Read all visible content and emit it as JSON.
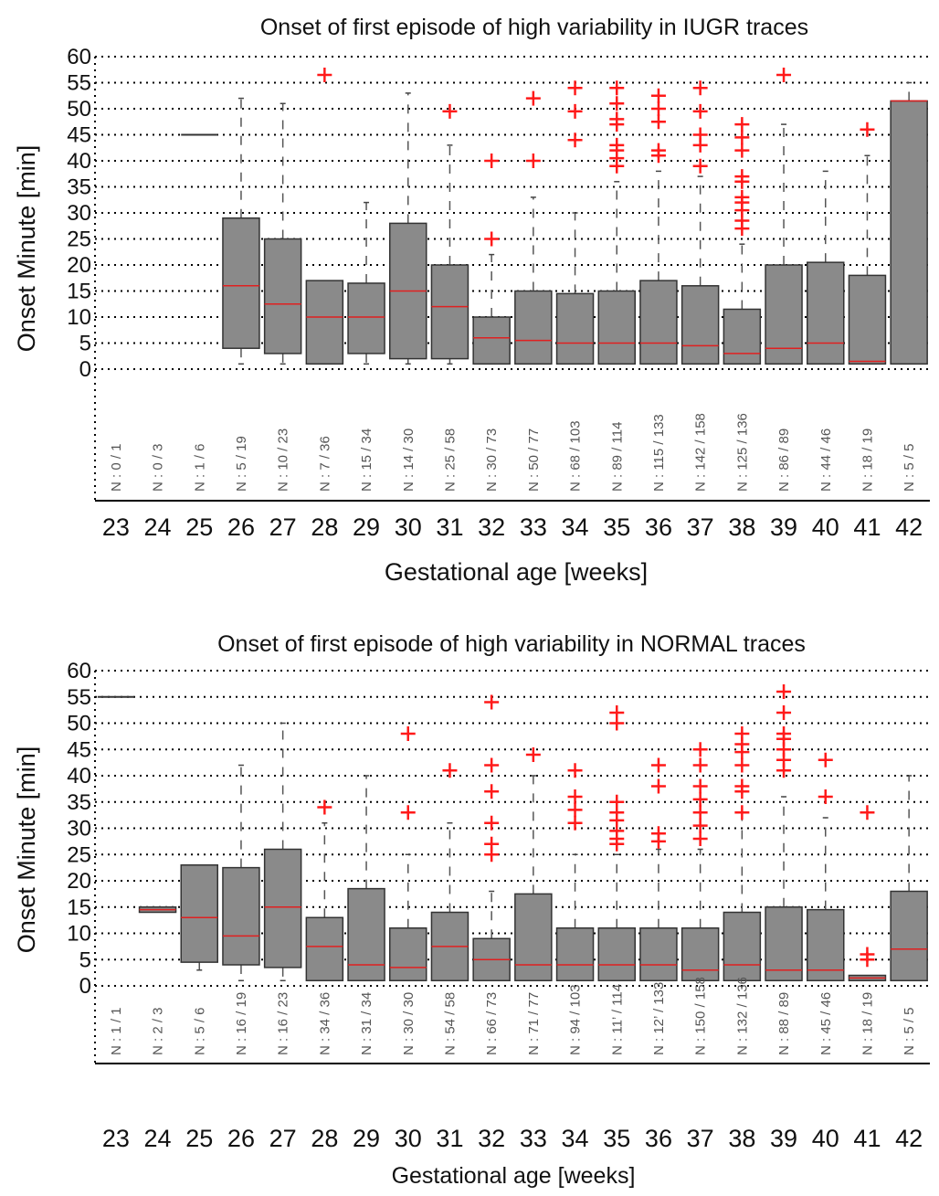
{
  "chart_data": [
    {
      "type": "box",
      "title": "Onset of first episode of high variability in IUGR traces",
      "xlabel": "Gestational age [weeks]",
      "ylabel": "Onset Minute [min]",
      "ylim": [
        0,
        60
      ],
      "yticks": [
        0,
        5,
        10,
        15,
        20,
        25,
        30,
        35,
        40,
        45,
        50,
        55,
        60
      ],
      "grid": true,
      "categories": [
        "23",
        "24",
        "25",
        "26",
        "27",
        "28",
        "29",
        "30",
        "31",
        "32",
        "33",
        "34",
        "35",
        "36",
        "37",
        "38",
        "39",
        "40",
        "41",
        "42"
      ],
      "n_labels": [
        "N : 0 / 1",
        "N : 0 / 3",
        "N : 1 / 6",
        "N : 5 / 19",
        "N : 10 / 23",
        "N : 7 / 36",
        "N : 15 / 34",
        "N : 14 / 30",
        "N : 25 / 58",
        "N : 30 / 73",
        "N : 50 / 77",
        "N : 68 / 103",
        "N : 89 / 114",
        "N : 115 / 133",
        "N : 142 / 158",
        "N : 125 / 136",
        "N : 86 / 89",
        "N : 44 / 46",
        "N : 18 / 19",
        "N : 5 / 5"
      ],
      "boxes": [
        null,
        null,
        {
          "q1": 45,
          "median": 45,
          "q3": 45,
          "min": 45,
          "max": 45
        },
        {
          "q1": 4,
          "median": 16,
          "q3": 29,
          "min": 1,
          "max": 52
        },
        {
          "q1": 3,
          "median": 12.5,
          "q3": 25,
          "min": 1,
          "max": 51
        },
        {
          "q1": 1,
          "median": 10,
          "q3": 17,
          "min": 1,
          "max": 17
        },
        {
          "q1": 3,
          "median": 10,
          "q3": 16.5,
          "min": 1,
          "max": 32
        },
        {
          "q1": 2,
          "median": 15,
          "q3": 28,
          "min": 1,
          "max": 53
        },
        {
          "q1": 2,
          "median": 12,
          "q3": 20,
          "min": 1,
          "max": 43
        },
        {
          "q1": 1,
          "median": 6,
          "q3": 10,
          "min": 1,
          "max": 22
        },
        {
          "q1": 1,
          "median": 5.5,
          "q3": 15,
          "min": 1,
          "max": 33
        },
        {
          "q1": 1,
          "median": 5,
          "q3": 14.5,
          "min": 1,
          "max": 30
        },
        {
          "q1": 1,
          "median": 5,
          "q3": 15,
          "min": 1,
          "max": 36
        },
        {
          "q1": 1,
          "median": 5,
          "q3": 17,
          "min": 1,
          "max": 38
        },
        {
          "q1": 1,
          "median": 4.5,
          "q3": 16,
          "min": 1,
          "max": 37
        },
        {
          "q1": 1,
          "median": 3,
          "q3": 11.5,
          "min": 1,
          "max": 24
        },
        {
          "q1": 1,
          "median": 4,
          "q3": 20,
          "min": 1,
          "max": 47
        },
        {
          "q1": 1,
          "median": 5,
          "q3": 20.5,
          "min": 1,
          "max": 38
        },
        {
          "q1": 1,
          "median": 1.5,
          "q3": 18,
          "min": 1,
          "max": 41
        },
        {
          "q1": 1,
          "median": 51.5,
          "q3": 51.5,
          "min": 1,
          "max": 55
        }
      ],
      "outliers": [
        [],
        [],
        [],
        [],
        [],
        [
          56.5
        ],
        [],
        [],
        [
          49.5
        ],
        [
          25,
          40
        ],
        [
          40,
          52
        ],
        [
          44,
          49.5,
          54
        ],
        [
          39,
          40.5,
          42,
          43,
          47,
          48,
          51,
          54
        ],
        [
          41,
          42,
          47.5,
          50,
          52.5
        ],
        [
          39,
          43,
          45,
          49.5,
          54
        ],
        [
          27,
          28.5,
          30.5,
          32,
          33,
          36,
          37,
          42,
          44.5,
          47
        ],
        [
          56.5
        ],
        [],
        [
          46
        ],
        []
      ]
    },
    {
      "type": "box",
      "title": "Onset of first episode of high variability in NORMAL traces",
      "xlabel": "Gestational age [weeks]",
      "ylabel": "Onset Minute [min]",
      "ylim": [
        0,
        60
      ],
      "yticks": [
        0,
        5,
        10,
        15,
        20,
        25,
        30,
        35,
        40,
        45,
        50,
        55,
        60
      ],
      "grid": true,
      "categories": [
        "23",
        "24",
        "25",
        "26",
        "27",
        "28",
        "29",
        "30",
        "31",
        "32",
        "33",
        "34",
        "35",
        "36",
        "37",
        "38",
        "39",
        "40",
        "41",
        "42"
      ],
      "n_labels": [
        "N : 1 / 1",
        "N : 2 / 3",
        "N : 5 / 6",
        "N : 16 / 19",
        "N : 16 / 23",
        "N : 34 / 36",
        "N : 31 / 34",
        "N : 30 / 30",
        "N : 54 / 58",
        "N : 66 / 73",
        "N : 71 / 77",
        "N : 94 / 103",
        "N : 11’ / 114",
        "N : 12’ / 133",
        "N : 150 / 158",
        "N : 132 / 136",
        "N : 88 / 89",
        "N : 45 / 46",
        "N : 18 / 19",
        "N : 5 / 5"
      ],
      "boxes": [
        {
          "q1": 55,
          "median": 55,
          "q3": 55,
          "min": 55,
          "max": 55
        },
        {
          "q1": 14,
          "median": 14.5,
          "q3": 15,
          "min": 14,
          "max": 15
        },
        {
          "q1": 4.5,
          "median": 13,
          "q3": 23,
          "min": 3,
          "max": 23
        },
        {
          "q1": 4,
          "median": 9.5,
          "q3": 22.5,
          "min": 1,
          "max": 42
        },
        {
          "q1": 3.5,
          "median": 15,
          "q3": 26,
          "min": 1,
          "max": 50
        },
        {
          "q1": 1,
          "median": 7.5,
          "q3": 13,
          "min": 1,
          "max": 31
        },
        {
          "q1": 1,
          "median": 4,
          "q3": 18.5,
          "min": 1,
          "max": 40
        },
        {
          "q1": 1,
          "median": 3.5,
          "q3": 11,
          "min": 1,
          "max": 25
        },
        {
          "q1": 1,
          "median": 7.5,
          "q3": 14,
          "min": 1,
          "max": 31
        },
        {
          "q1": 1,
          "median": 5,
          "q3": 9,
          "min": 1,
          "max": 18
        },
        {
          "q1": 1,
          "median": 4,
          "q3": 17.5,
          "min": 1,
          "max": 40
        },
        {
          "q1": 1,
          "median": 4,
          "q3": 11,
          "min": 1,
          "max": 25
        },
        {
          "q1": 1,
          "median": 4,
          "q3": 11,
          "min": 1,
          "max": 25
        },
        {
          "q1": 1,
          "median": 4,
          "q3": 11,
          "min": 1,
          "max": 26
        },
        {
          "q1": 1,
          "median": 3,
          "q3": 11,
          "min": 1,
          "max": 26
        },
        {
          "q1": 1,
          "median": 4,
          "q3": 14,
          "min": 1,
          "max": 33
        },
        {
          "q1": 1,
          "median": 3,
          "q3": 15,
          "min": 1,
          "max": 36
        },
        {
          "q1": 1,
          "median": 3,
          "q3": 14.5,
          "min": 1,
          "max": 32
        },
        {
          "q1": 1,
          "median": 1.5,
          "q3": 2,
          "min": 1,
          "max": 2
        },
        {
          "q1": 1,
          "median": 7,
          "q3": 18,
          "min": 1,
          "max": 40
        }
      ],
      "outliers": [
        [],
        [],
        [],
        [],
        [],
        [
          34
        ],
        [],
        [
          33,
          48
        ],
        [
          41
        ],
        [
          25,
          27,
          31,
          37,
          42,
          54
        ],
        [
          44
        ],
        [
          31,
          33.5,
          36,
          41
        ],
        [
          27,
          28,
          29.5,
          31.5,
          33,
          35,
          50,
          52
        ],
        [
          27.5,
          29,
          38,
          42
        ],
        [
          28,
          30.5,
          33,
          35.5,
          38,
          42,
          45
        ],
        [
          33,
          37,
          38,
          42,
          44.5,
          46,
          48
        ],
        [
          41,
          43,
          45,
          47,
          48,
          52,
          56
        ],
        [
          36,
          43
        ],
        [
          5,
          6,
          33
        ],
        []
      ]
    }
  ]
}
